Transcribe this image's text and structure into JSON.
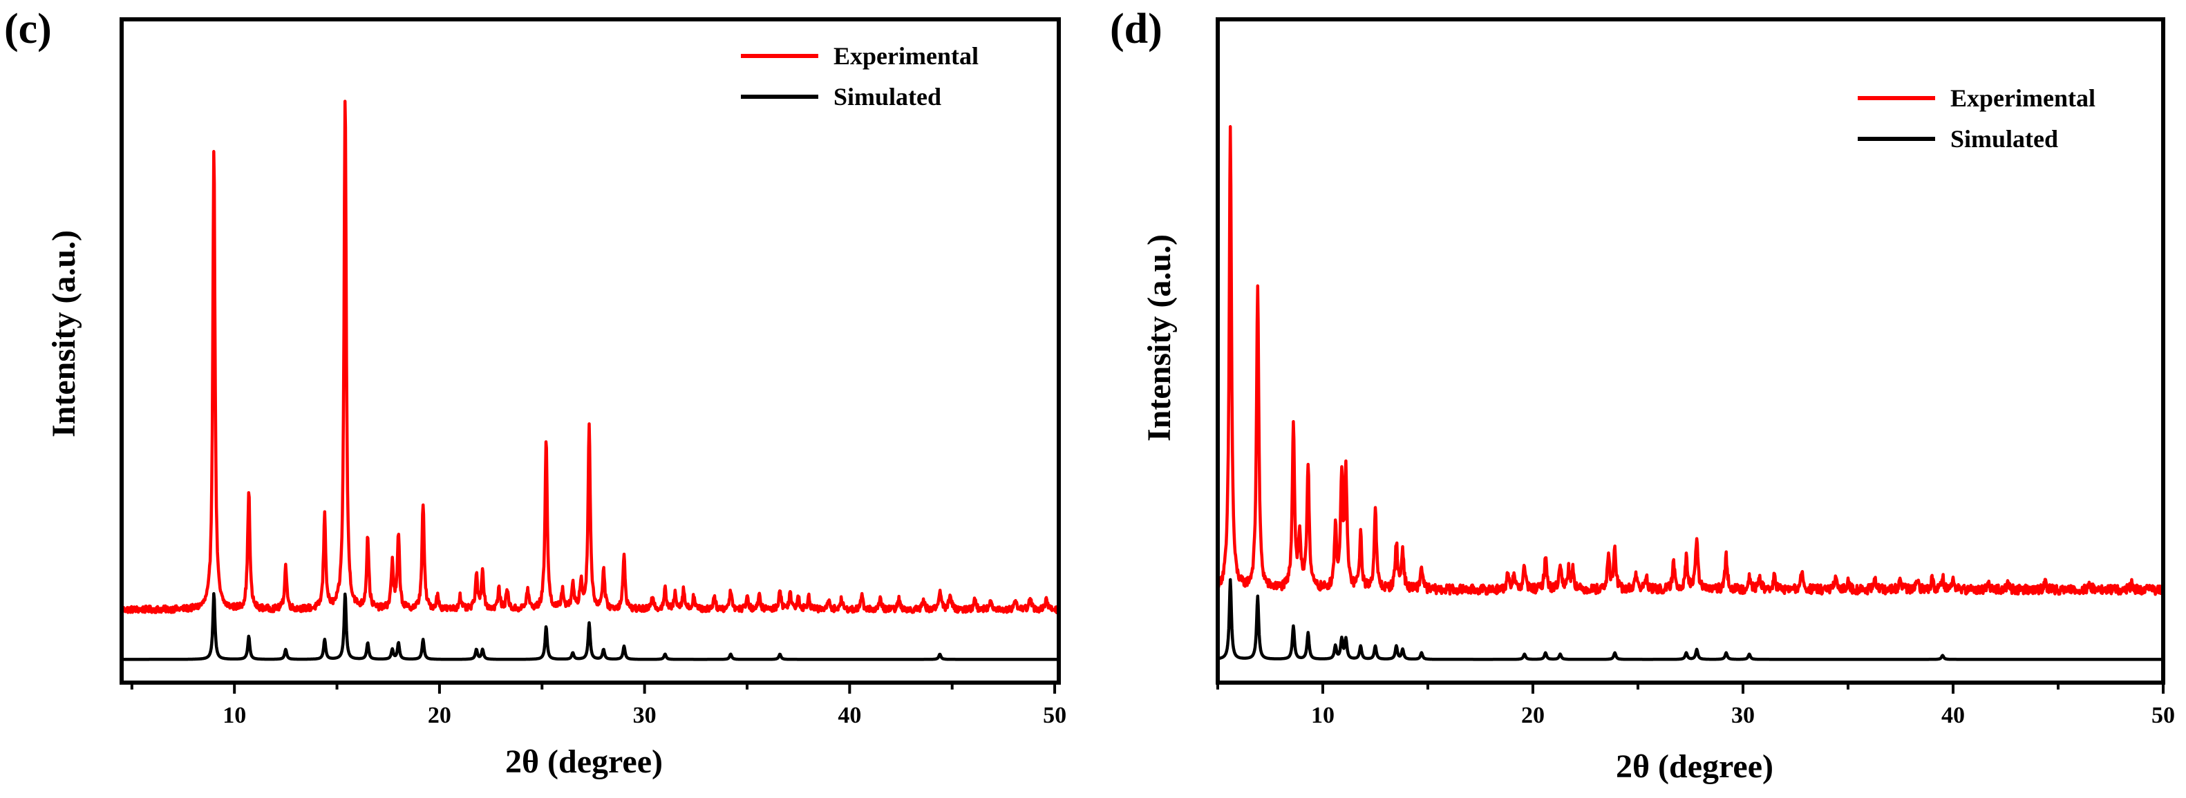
{
  "colors": {
    "experimental": "#ff0000",
    "simulated": "#000000",
    "axis": "#000000"
  },
  "chart_data": [
    {
      "type": "line",
      "panel_label": "(c)",
      "xlabel": "2θ (degree)",
      "ylabel": "Intensity (a.u.)",
      "xlim": [
        4.5,
        50.2
      ],
      "ylim": [
        0,
        100
      ],
      "xticks": [
        10,
        20,
        30,
        40,
        50
      ],
      "xtick_labels": [
        "10",
        "20",
        "30",
        "40",
        "50"
      ],
      "legend": {
        "position": "top-right",
        "entries": [
          "Experimental",
          "Simulated"
        ]
      },
      "series": [
        {
          "name": "Experimental",
          "baseline": 11,
          "noise": 0.5,
          "peaks": [
            [
              9.0,
              70
            ],
            [
              10.7,
              18
            ],
            [
              12.5,
              6.5
            ],
            [
              14.4,
              14
            ],
            [
              15.4,
              78
            ],
            [
              16.5,
              11
            ],
            [
              17.7,
              7
            ],
            [
              18.0,
              11
            ],
            [
              19.2,
              16
            ],
            [
              19.9,
              2
            ],
            [
              21.0,
              2
            ],
            [
              21.8,
              5
            ],
            [
              22.1,
              6
            ],
            [
              22.9,
              3
            ],
            [
              23.3,
              3
            ],
            [
              24.3,
              3
            ],
            [
              25.2,
              26
            ],
            [
              26.0,
              3
            ],
            [
              26.5,
              4
            ],
            [
              26.9,
              4
            ],
            [
              27.3,
              28
            ],
            [
              28.0,
              6
            ],
            [
              29.0,
              8
            ],
            [
              30.4,
              2
            ],
            [
              31.0,
              3
            ],
            [
              31.5,
              2.5
            ],
            [
              31.9,
              3
            ],
            [
              32.4,
              2
            ],
            [
              33.4,
              2
            ],
            [
              34.2,
              3
            ],
            [
              35.0,
              2
            ],
            [
              35.6,
              2
            ],
            [
              36.6,
              3
            ],
            [
              37.1,
              2.5
            ],
            [
              37.5,
              2
            ],
            [
              38.0,
              2
            ],
            [
              39.0,
              1.5
            ],
            [
              39.6,
              1.5
            ],
            [
              40.6,
              2
            ],
            [
              41.5,
              1.5
            ],
            [
              42.4,
              1.5
            ],
            [
              43.6,
              1.5
            ],
            [
              44.4,
              3
            ],
            [
              44.9,
              2.5
            ],
            [
              46.1,
              1.5
            ],
            [
              46.9,
              1.5
            ],
            [
              48.1,
              1.5
            ],
            [
              48.8,
              2
            ],
            [
              49.6,
              1.5
            ]
          ]
        },
        {
          "name": "Simulated",
          "baseline": 3.5,
          "noise": 0,
          "peaks": [
            [
              9.0,
              10
            ],
            [
              10.7,
              3.5
            ],
            [
              12.5,
              1.5
            ],
            [
              14.4,
              3
            ],
            [
              15.4,
              10
            ],
            [
              16.5,
              2.5
            ],
            [
              17.7,
              1.5
            ],
            [
              18.0,
              2.5
            ],
            [
              19.2,
              3
            ],
            [
              21.8,
              1.5
            ],
            [
              22.1,
              1.5
            ],
            [
              25.2,
              5
            ],
            [
              26.5,
              1
            ],
            [
              27.3,
              5.5
            ],
            [
              28.0,
              1.5
            ],
            [
              29.0,
              2
            ],
            [
              31.0,
              0.8
            ],
            [
              34.2,
              0.8
            ],
            [
              36.6,
              0.8
            ],
            [
              44.4,
              0.8
            ]
          ]
        }
      ]
    },
    {
      "type": "line",
      "panel_label": "(d)",
      "xlabel": "2θ (degree)",
      "ylabel": "Intensity (a.u.)",
      "xlim": [
        5,
        50
      ],
      "ylim": [
        0,
        100
      ],
      "xticks": [
        10,
        20,
        30,
        40,
        50
      ],
      "xtick_labels": [
        "10",
        "20",
        "30",
        "40",
        "50"
      ],
      "legend": {
        "position": "top-right",
        "entries": [
          "Experimental",
          "Simulated"
        ]
      },
      "series": [
        {
          "name": "Experimental",
          "baseline": 14,
          "noise": 0.7,
          "peaks": [
            [
              5.6,
              70
            ],
            [
              6.9,
              46
            ],
            [
              8.6,
              25
            ],
            [
              8.9,
              8
            ],
            [
              9.3,
              19
            ],
            [
              10.6,
              9
            ],
            [
              10.9,
              16
            ],
            [
              11.1,
              17
            ],
            [
              11.8,
              8
            ],
            [
              12.5,
              12
            ],
            [
              13.5,
              7
            ],
            [
              13.8,
              6
            ],
            [
              14.7,
              3.5
            ],
            [
              18.8,
              2
            ],
            [
              19.1,
              2.5
            ],
            [
              19.6,
              3.5
            ],
            [
              20.6,
              5
            ],
            [
              21.3,
              4
            ],
            [
              21.7,
              3
            ],
            [
              21.9,
              3
            ],
            [
              23.6,
              5
            ],
            [
              23.9,
              6
            ],
            [
              24.9,
              2.5
            ],
            [
              25.4,
              2
            ],
            [
              26.7,
              4
            ],
            [
              27.3,
              5
            ],
            [
              27.8,
              8
            ],
            [
              29.2,
              5
            ],
            [
              30.3,
              2
            ],
            [
              30.8,
              2
            ],
            [
              31.5,
              2
            ],
            [
              32.8,
              2.5
            ],
            [
              34.4,
              1.5
            ],
            [
              35.0,
              1.5
            ],
            [
              36.3,
              1.5
            ],
            [
              37.5,
              1.5
            ],
            [
              38.3,
              1.5
            ],
            [
              39.0,
              1.5
            ],
            [
              39.5,
              2
            ],
            [
              40.0,
              1.5
            ],
            [
              41.7,
              1
            ],
            [
              42.6,
              1
            ],
            [
              44.4,
              1
            ],
            [
              46.5,
              1
            ],
            [
              48.5,
              1
            ]
          ]
        },
        {
          "name": "Simulated",
          "baseline": 3.5,
          "noise": 0,
          "peaks": [
            [
              5.6,
              12
            ],
            [
              6.9,
              9.5
            ],
            [
              8.6,
              5
            ],
            [
              9.3,
              4
            ],
            [
              10.6,
              2
            ],
            [
              10.9,
              3
            ],
            [
              11.1,
              3
            ],
            [
              11.8,
              2
            ],
            [
              12.5,
              2
            ],
            [
              13.5,
              2
            ],
            [
              13.8,
              1.5
            ],
            [
              14.7,
              1
            ],
            [
              19.6,
              0.8
            ],
            [
              20.6,
              1
            ],
            [
              21.3,
              0.8
            ],
            [
              23.9,
              1
            ],
            [
              27.3,
              1
            ],
            [
              27.8,
              1.5
            ],
            [
              29.2,
              1
            ],
            [
              30.3,
              0.8
            ],
            [
              39.5,
              0.6
            ]
          ]
        }
      ]
    }
  ]
}
